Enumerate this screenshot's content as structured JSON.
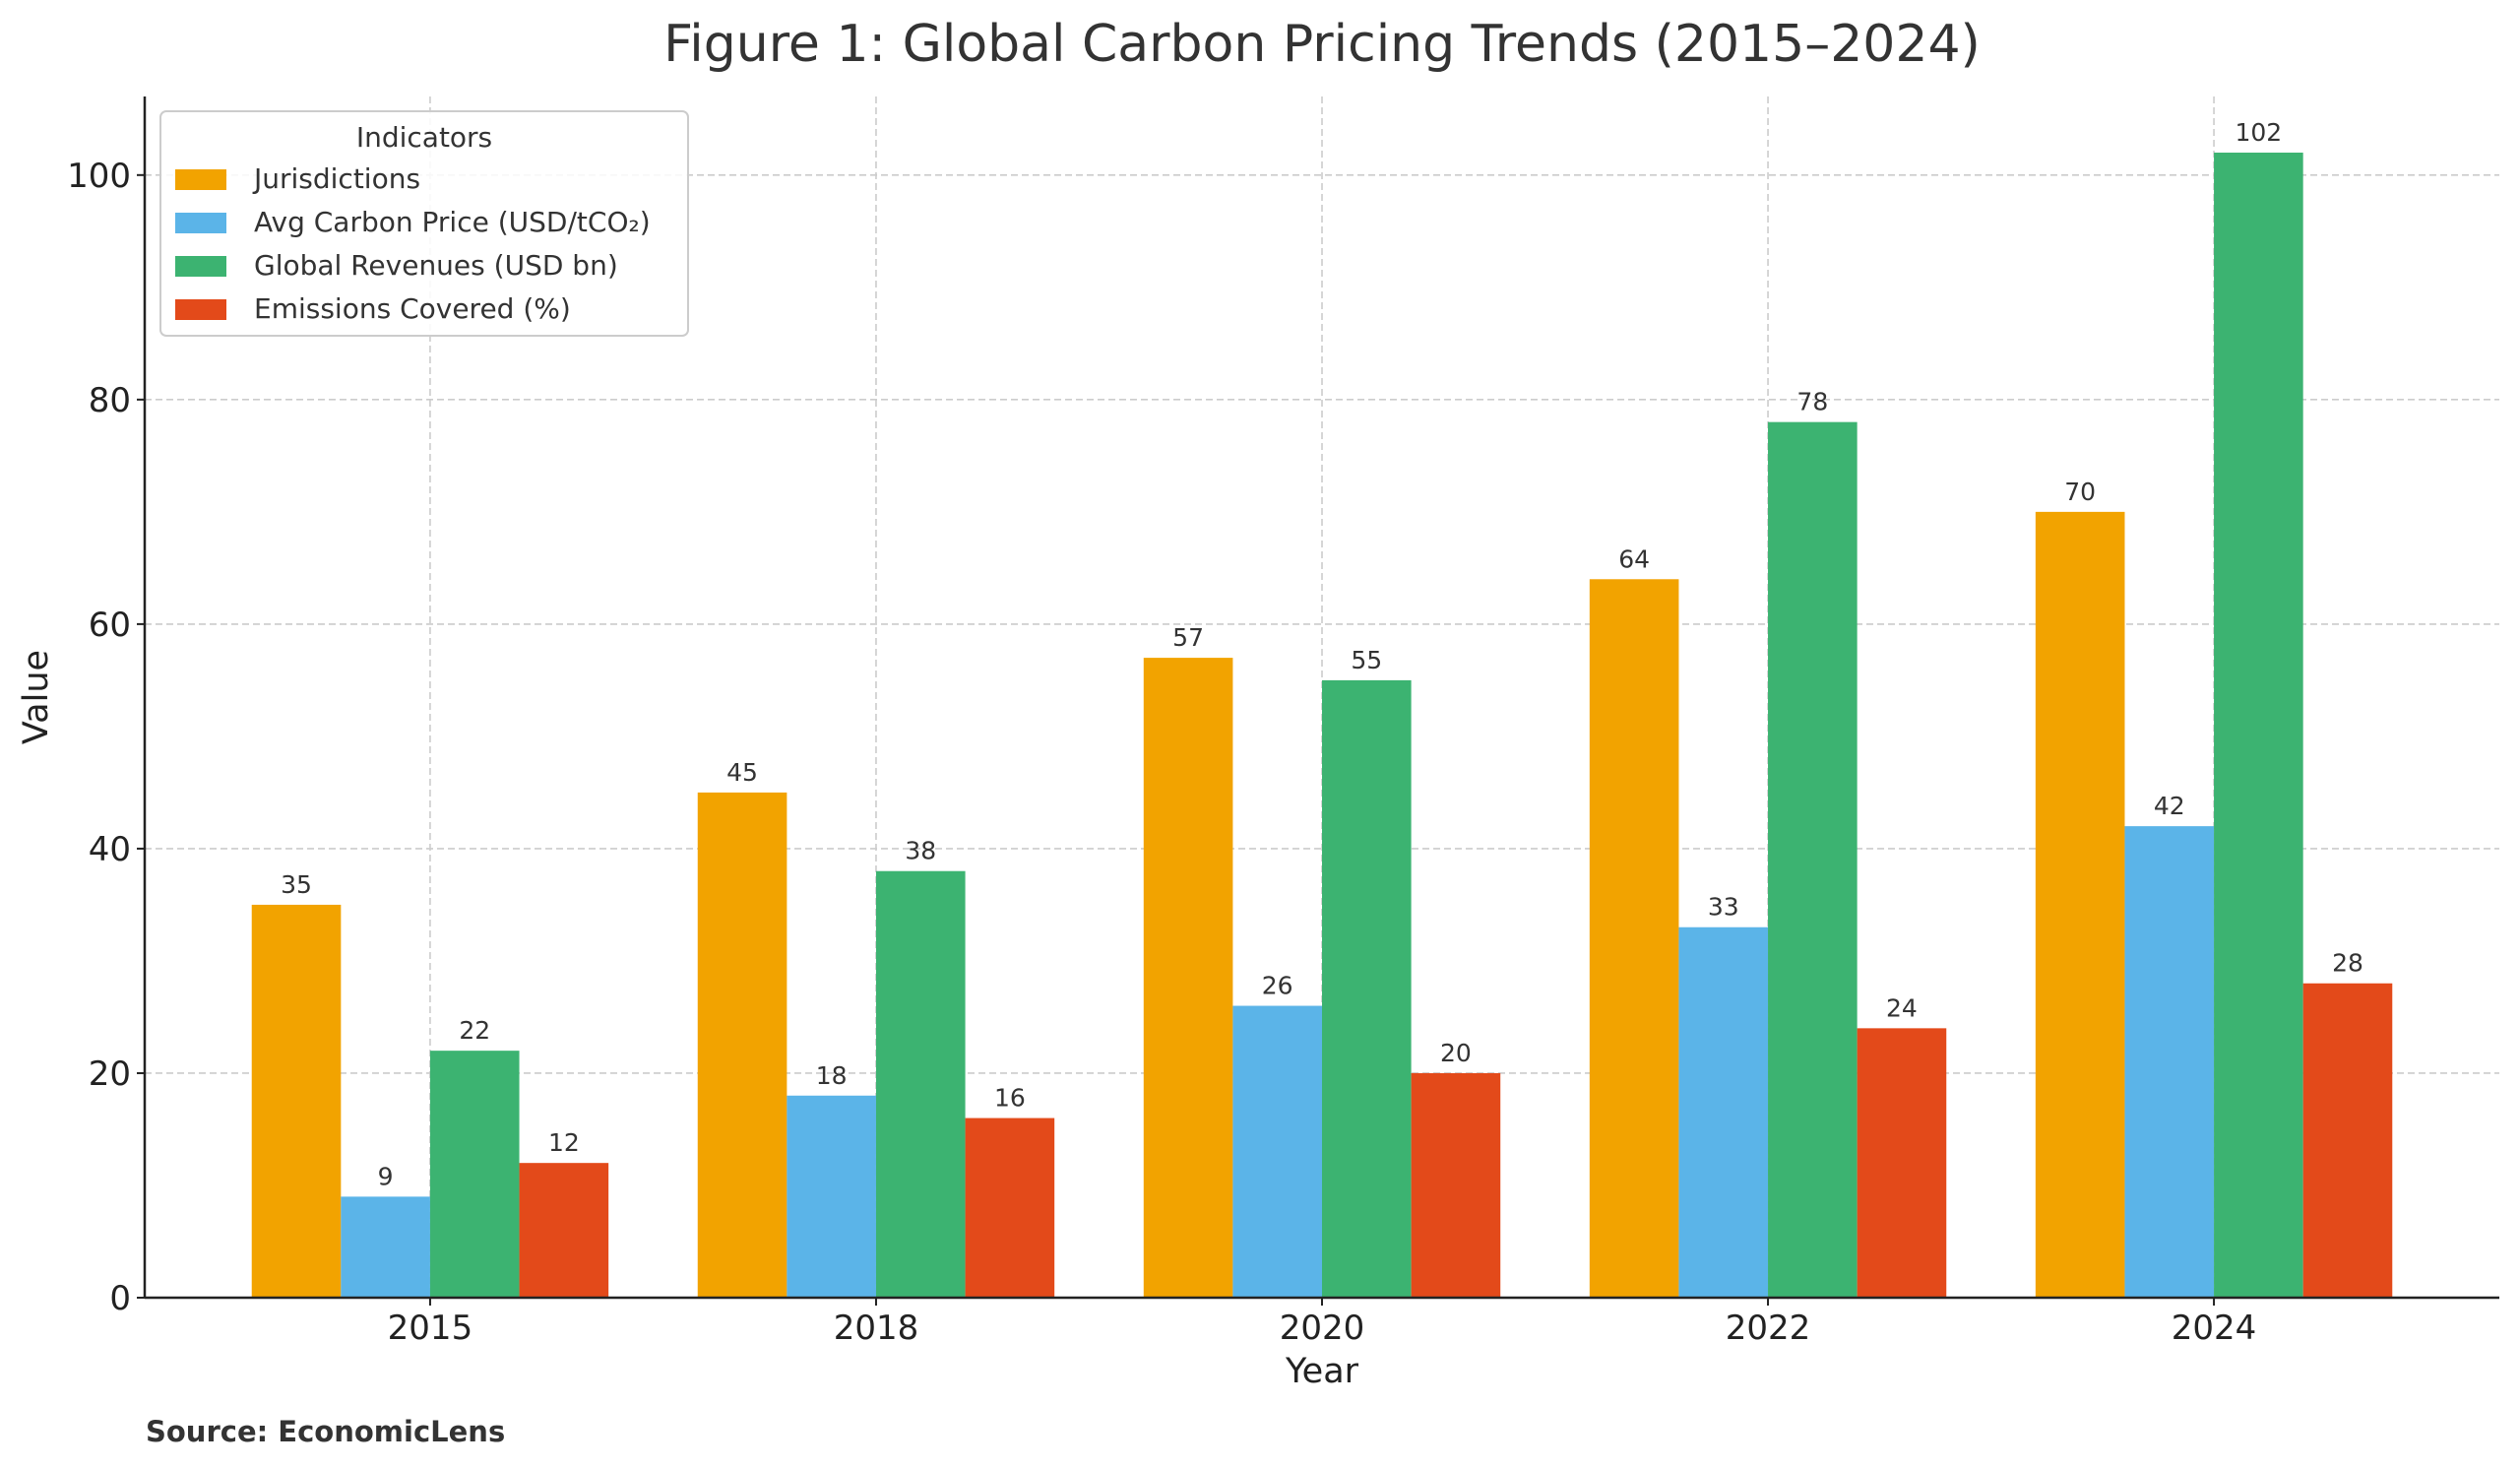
{
  "chart_data": {
    "type": "bar",
    "title": "Figure 1: Global Carbon Pricing Trends (2015–2024)",
    "xlabel": "Year",
    "ylabel": "Value",
    "categories": [
      "2015",
      "2018",
      "2020",
      "2022",
      "2024"
    ],
    "series": [
      {
        "name": "Jurisdictions",
        "color": "#F2A300",
        "values": [
          35,
          45,
          57,
          64,
          70
        ]
      },
      {
        "name": "Avg Carbon Price (USD/tCO₂)",
        "color": "#5BB4E8",
        "values": [
          9,
          18,
          26,
          33,
          42
        ]
      },
      {
        "name": "Global Revenues (USD bn)",
        "color": "#3CB371",
        "values": [
          22,
          38,
          55,
          78,
          102
        ]
      },
      {
        "name": "Emissions Covered (%)",
        "color": "#E34A1A",
        "values": [
          12,
          16,
          20,
          24,
          28
        ]
      }
    ],
    "ylim": [
      0,
      107
    ],
    "yticks": [
      "0",
      "20",
      "40",
      "60",
      "80",
      "100"
    ],
    "grid": true,
    "legend": {
      "title": "Indicators",
      "placement": "top-left"
    },
    "data_labels": true,
    "source": "Source: EconomicLens"
  }
}
